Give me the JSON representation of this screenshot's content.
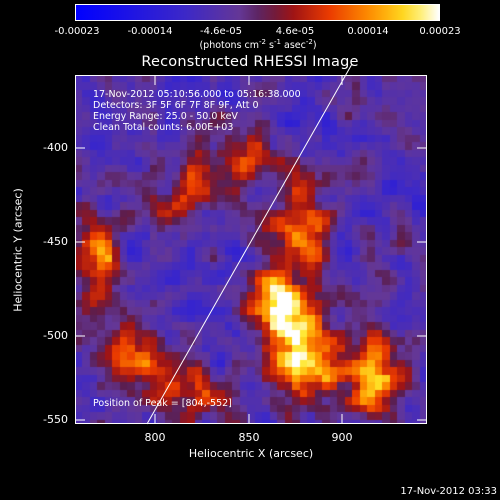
{
  "colorbar": {
    "tick_labels": [
      "-0.00023",
      "-0.00014",
      "-4.6e-05",
      "4.6e-05",
      "0.00014",
      "0.00023"
    ],
    "units_text": "(photons cm",
    "units_exp1": "-2",
    "units_mid1": " s",
    "units_exp2": "-1",
    "units_mid2": " asec",
    "units_exp3": "-2",
    "units_close": ")"
  },
  "plot": {
    "title": "Reconstructed RHESSI Image",
    "xlabel": "Heliocentric X (arcsec)",
    "ylabel": "Heliocentric Y (arcsec)",
    "x_ticks": [
      "800",
      "850",
      "900"
    ],
    "y_ticks": [
      "-400",
      "-450",
      "-500",
      "-550"
    ],
    "x_range": [
      759,
      946
    ],
    "y_range": [
      -555,
      -370
    ]
  },
  "annotations": {
    "time_range": "17-Nov-2012 05:10:56.000 to 05:16:38.000",
    "detectors": "Detectors: 3F 5F 6F 7F 8F 9F, Att 0",
    "energy": "Energy Range: 25.0 - 50.0 keV",
    "clean": "Clean    Total counts: 6.00E+03",
    "peak": "Position of Peak = [804,-552]"
  },
  "timestamp": "17-Nov-2012 03:33",
  "colors": {
    "background": "#000000",
    "low": "#0000ff",
    "mid": "#6a3a9a",
    "high": "#ff5000",
    "peak": "#ffff00",
    "max": "#ffffff"
  }
}
